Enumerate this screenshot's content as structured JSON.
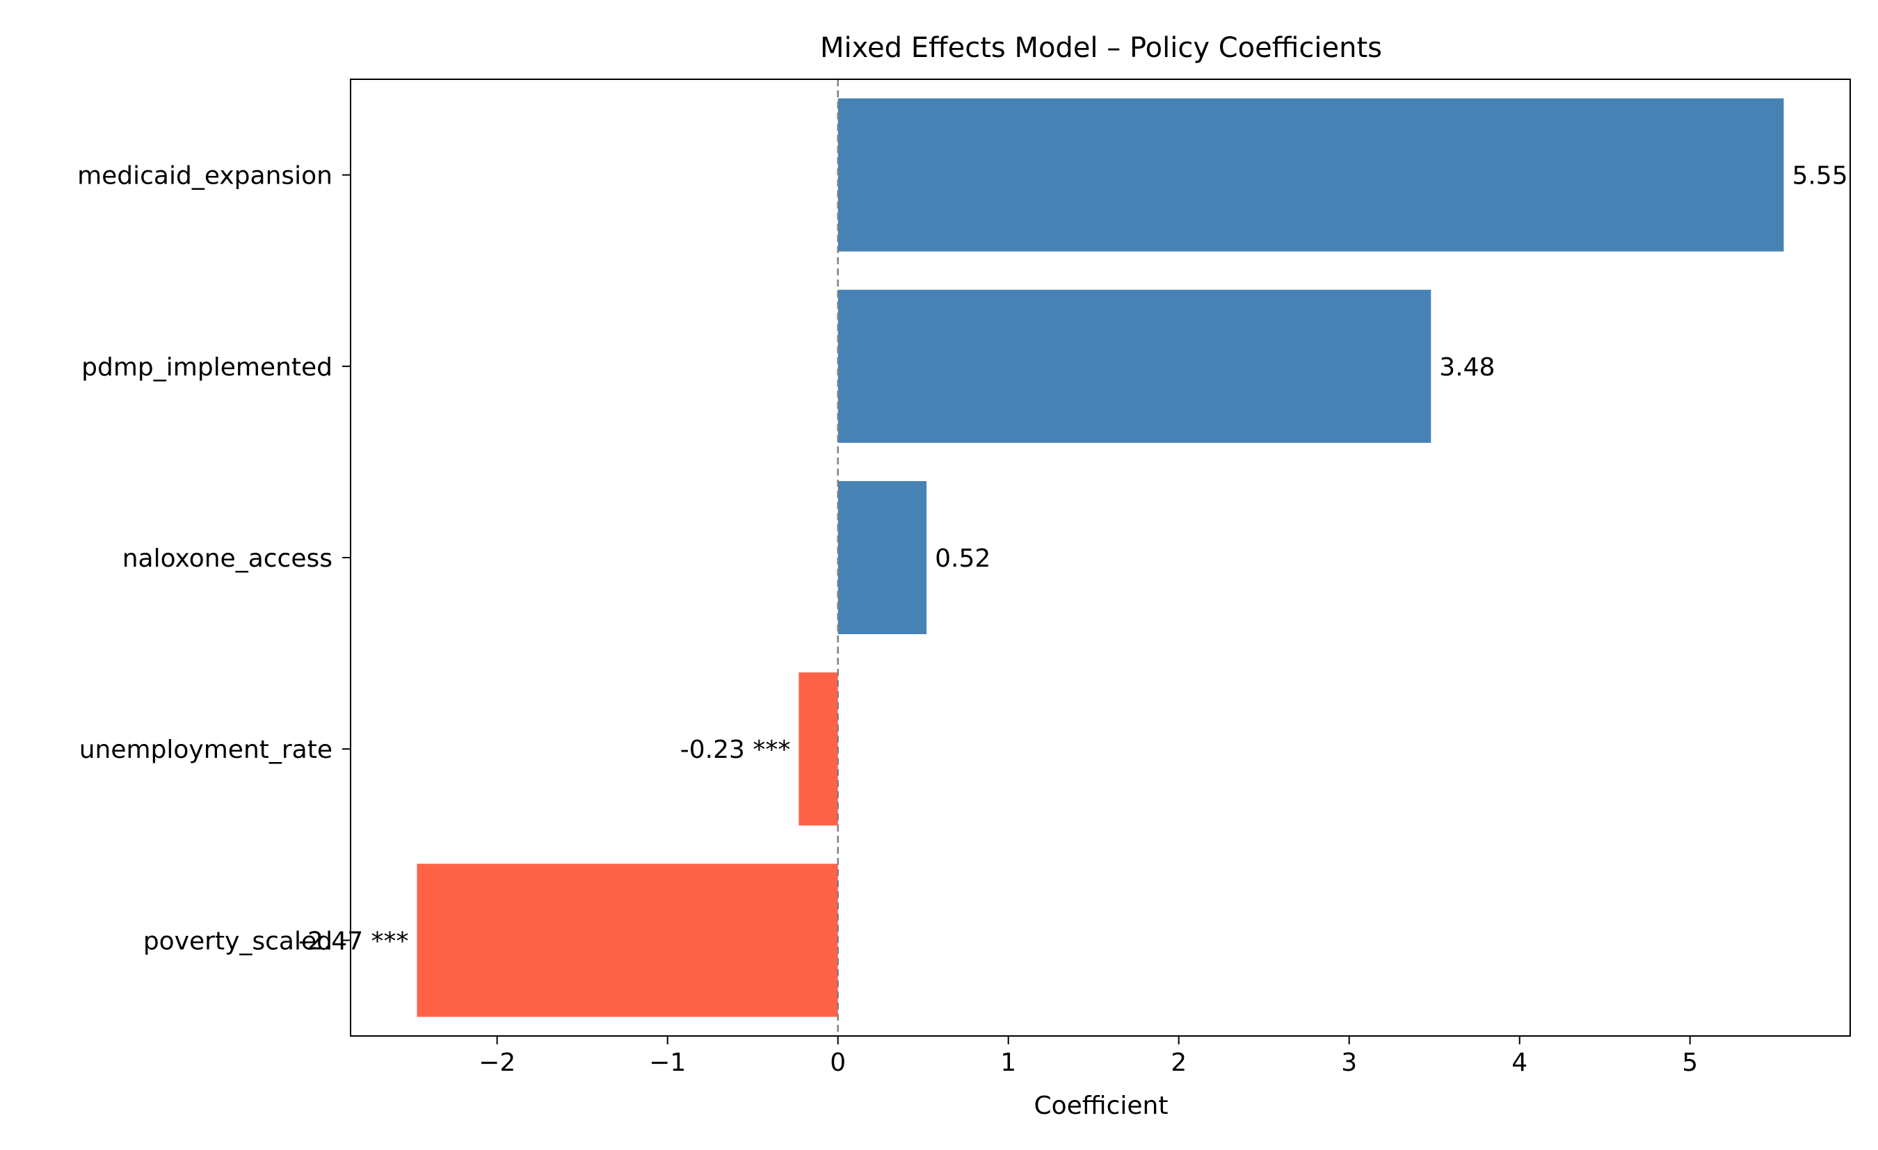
{
  "chart_data": {
    "type": "bar",
    "orientation": "horizontal",
    "title": "Mixed Effects Model – Policy Coefficients",
    "xlabel": "Coefficient",
    "ylabel": "",
    "categories": [
      "medicaid_expansion",
      "pdmp_implemented",
      "naloxone_access",
      "unemployment_rate",
      "poverty_scaled"
    ],
    "values": [
      5.55,
      3.48,
      0.52,
      -0.23,
      -2.47
    ],
    "data_labels": [
      "5.55",
      "3.48",
      "0.52",
      "-0.23 ***",
      "-2.47 ***"
    ],
    "xlim": [
      -2.86,
      5.94
    ],
    "xticks": [
      -2,
      -1,
      0,
      1,
      2,
      3,
      4,
      5
    ],
    "xtick_labels": [
      "−2",
      "−1",
      "0",
      "1",
      "2",
      "3",
      "4",
      "5"
    ],
    "reference_line": 0,
    "grid": false,
    "legend": "none",
    "colors": {
      "positive": "#4682B4",
      "negative": "#FF6347",
      "reference_line": "#808080"
    }
  }
}
